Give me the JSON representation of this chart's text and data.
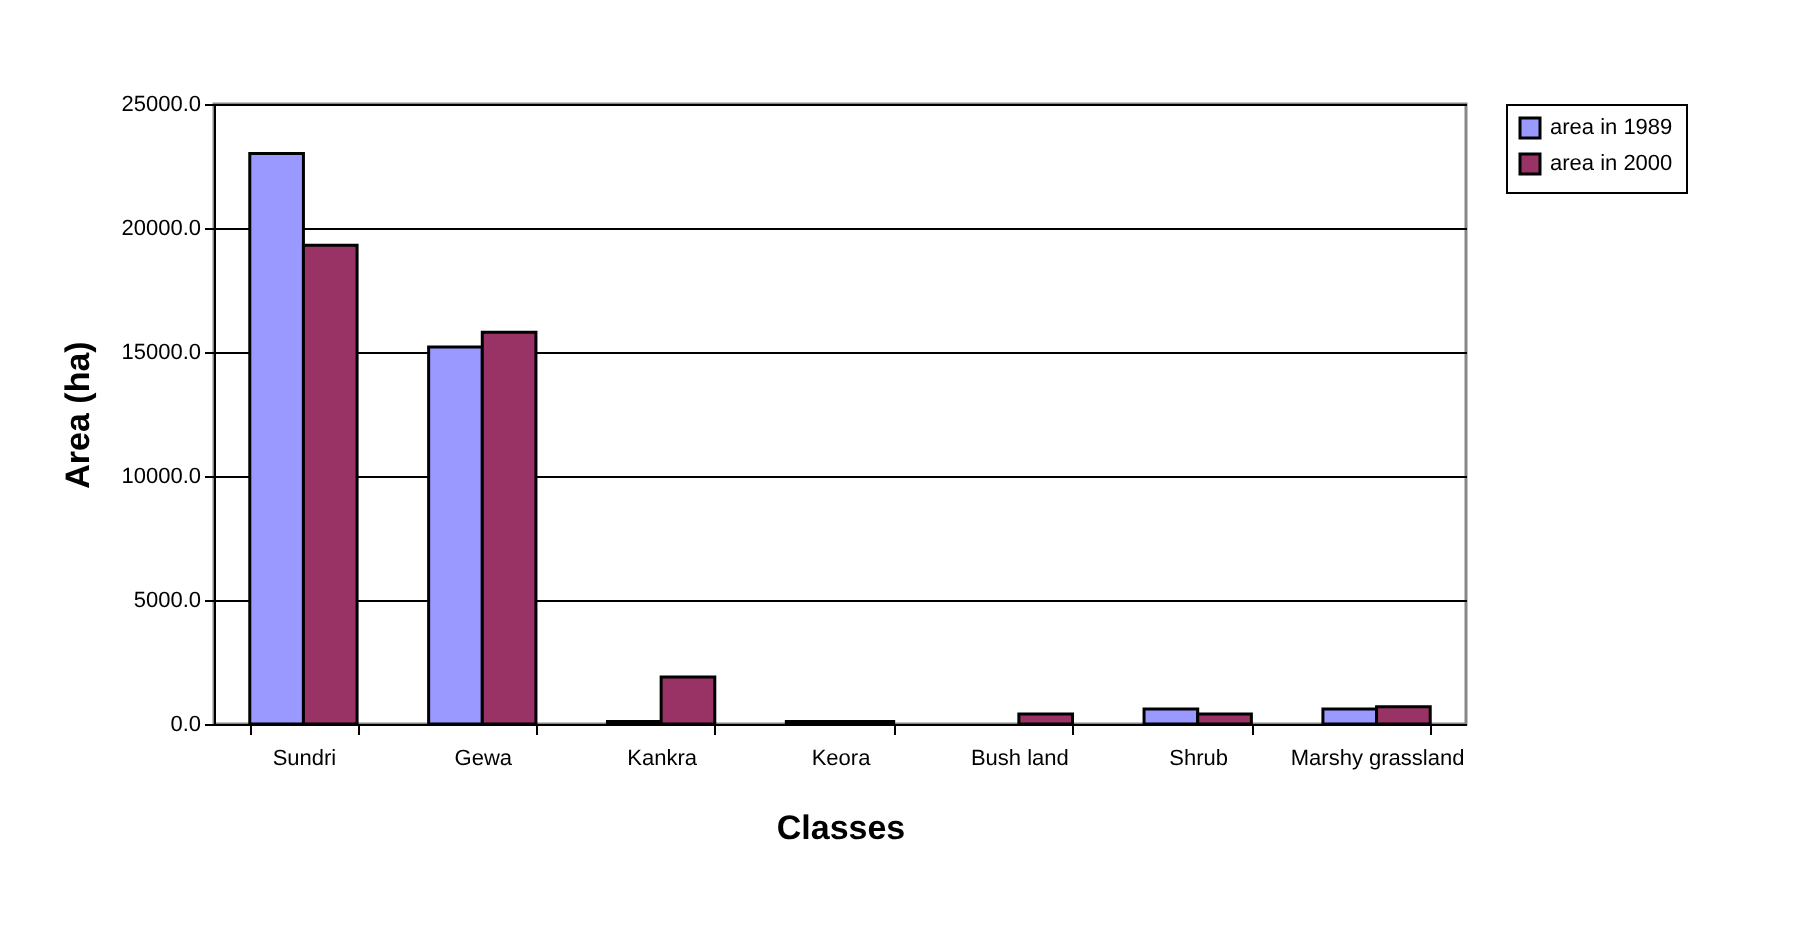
{
  "chart_data": {
    "type": "bar",
    "xlabel": "Classes",
    "ylabel": "Area (ha)",
    "categories": [
      "Sundri",
      "Gewa",
      "Kankra",
      "Keora",
      "Bush land",
      "Shrub",
      "Marshy grassland"
    ],
    "series": [
      {
        "name": "area in 1989",
        "color": "#9999ff",
        "values": [
          23000,
          15200,
          100,
          100,
          null,
          600,
          600
        ]
      },
      {
        "name": "area in 2000",
        "color": "#993366",
        "values": [
          19300,
          15800,
          1900,
          100,
          400,
          400,
          700
        ]
      }
    ],
    "ylim": [
      0,
      25000
    ],
    "yticks": [
      {
        "value": 0,
        "label": "0.0"
      },
      {
        "value": 5000,
        "label": "5000.0"
      },
      {
        "value": 10000,
        "label": "10000.0"
      },
      {
        "value": 15000,
        "label": "15000.0"
      },
      {
        "value": 20000,
        "label": "20000.0"
      },
      {
        "value": 25000,
        "label": "25000.0"
      }
    ],
    "grid": "y",
    "legend": "right"
  }
}
